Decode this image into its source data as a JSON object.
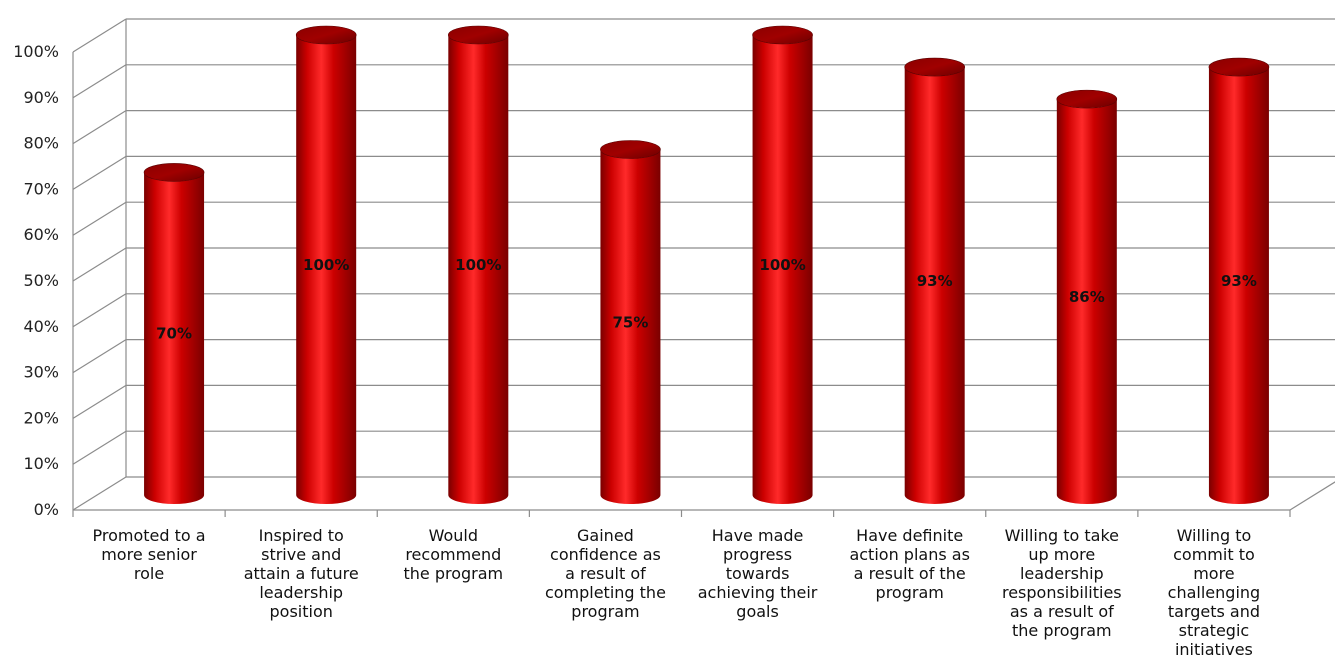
{
  "chart_data": {
    "type": "bar",
    "style": "3d-cylinder",
    "categories": [
      "Promoted to a more senior role",
      "Inspired to strive and attain a future leadership position",
      "Would recommend the program",
      "Gained confidence as a result of completing the program",
      "Have made progress towards achieving their goals",
      "Have definite action plans as a result of the program",
      "Willing to take up more leadership responsibilities as a result of the program",
      "Willing to commit to more challenging targets and strategic initiatives"
    ],
    "category_lines": [
      [
        "Promoted to a",
        "more senior",
        "role"
      ],
      [
        "Inspired to",
        "strive and",
        "attain a future",
        "leadership",
        "position"
      ],
      [
        "Would",
        "recommend",
        "the program"
      ],
      [
        "Gained",
        "confidence as",
        "a result of",
        "completing the",
        "program"
      ],
      [
        "Have made",
        "progress",
        "towards",
        "achieving their",
        "goals"
      ],
      [
        "Have definite",
        "action plans as",
        "a result of the",
        "program"
      ],
      [
        "Willing to take",
        "up more",
        "leadership",
        "responsibilities",
        "as a result of",
        "the program"
      ],
      [
        "Willing to",
        "commit to",
        "more",
        "challenging",
        "targets and",
        "strategic",
        "initiatives"
      ]
    ],
    "values": [
      70,
      100,
      100,
      75,
      100,
      93,
      86,
      93
    ],
    "data_labels": [
      "70%",
      "100%",
      "100%",
      "75%",
      "100%",
      "93%",
      "86%",
      "93%"
    ],
    "y_ticks": [
      "0%",
      "10%",
      "20%",
      "30%",
      "40%",
      "50%",
      "60%",
      "70%",
      "80%",
      "90%",
      "100%"
    ],
    "ylim": [
      0,
      100
    ],
    "grid": true,
    "legend": "none",
    "colors": {
      "bar": "#cc0000",
      "bar_light": "#ff2a2a",
      "bar_dark": "#7a0000",
      "bar_top": "#a00000",
      "grid": "#8c8c8c",
      "wall_shadow": "#e9e9e9"
    }
  }
}
